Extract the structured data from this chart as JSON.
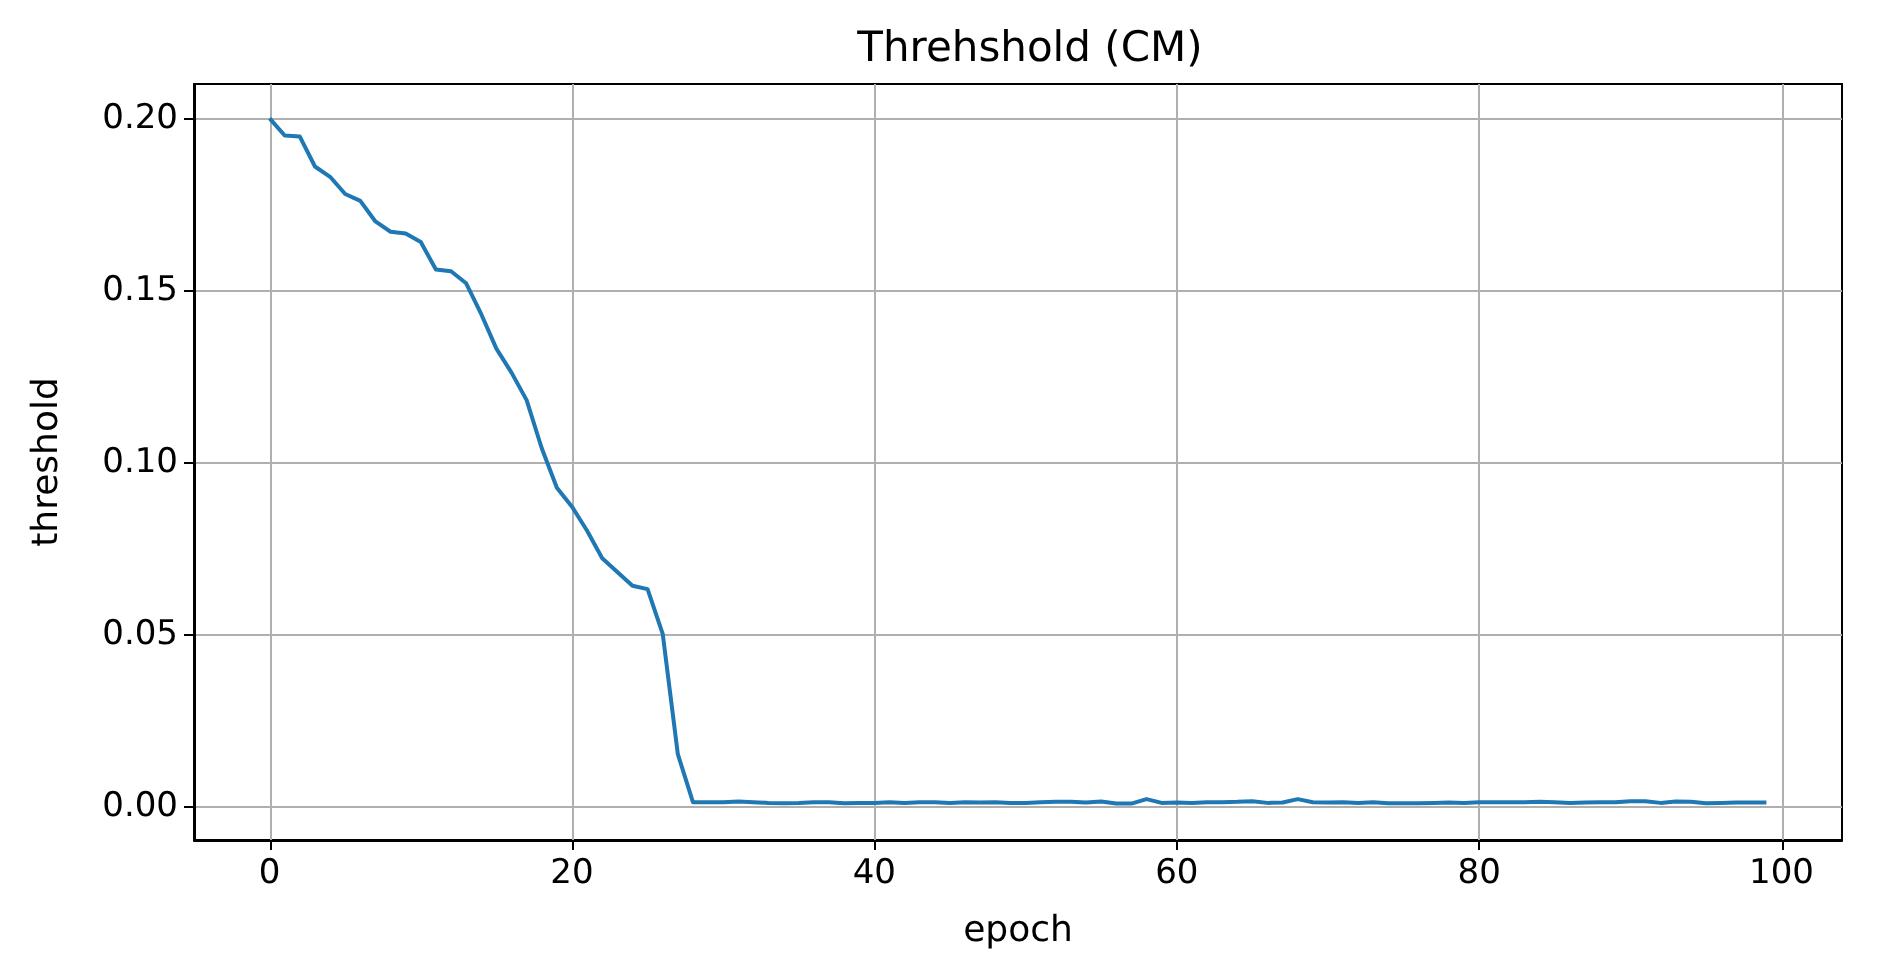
{
  "chart_data": {
    "type": "line",
    "title": "Threhshold (CM)",
    "xlabel": "epoch",
    "ylabel": "threshold",
    "x": [
      0,
      1,
      2,
      3,
      4,
      5,
      6,
      7,
      8,
      9,
      10,
      11,
      12,
      13,
      14,
      15,
      16,
      17,
      18,
      19,
      20,
      21,
      22,
      23,
      24,
      25,
      26,
      27,
      28,
      29,
      30,
      31,
      32,
      33,
      34,
      35,
      36,
      37,
      38,
      39,
      40,
      41,
      42,
      43,
      44,
      45,
      46,
      47,
      48,
      49,
      50,
      51,
      52,
      53,
      54,
      55,
      56,
      57,
      58,
      59,
      60,
      61,
      62,
      63,
      64,
      65,
      66,
      67,
      68,
      69,
      70,
      71,
      72,
      73,
      74,
      75,
      76,
      77,
      78,
      79,
      80,
      81,
      82,
      83,
      84,
      85,
      86,
      87,
      88,
      89,
      90,
      91,
      92,
      93,
      94,
      95,
      96,
      97,
      98,
      99
    ],
    "series": [
      {
        "color": "#1f77b4",
        "values": [
          0.2,
          0.195,
          0.1947,
          0.186,
          0.183,
          0.178,
          0.176,
          0.17,
          0.167,
          0.1665,
          0.164,
          0.156,
          0.1555,
          0.152,
          0.143,
          0.133,
          0.126,
          0.118,
          0.104,
          0.0925,
          0.087,
          0.08,
          0.072,
          0.068,
          0.064,
          0.063,
          0.05,
          0.015,
          0.001,
          0.001,
          0.001,
          0.0012,
          0.001,
          0.0008,
          0.0007,
          0.0008,
          0.001,
          0.001,
          0.0007,
          0.0008,
          0.0008,
          0.001,
          0.0008,
          0.001,
          0.001,
          0.0008,
          0.001,
          0.0009,
          0.001,
          0.0008,
          0.0008,
          0.001,
          0.0011,
          0.0011,
          0.0009,
          0.0012,
          0.0006,
          0.0006,
          0.0019,
          0.0008,
          0.0009,
          0.0008,
          0.001,
          0.001,
          0.0011,
          0.0013,
          0.0008,
          0.0009,
          0.0019,
          0.001,
          0.0009,
          0.001,
          0.0008,
          0.001,
          0.0007,
          0.0007,
          0.0007,
          0.0008,
          0.0009,
          0.0008,
          0.001,
          0.001,
          0.001,
          0.001,
          0.0011,
          0.001,
          0.0008,
          0.0009,
          0.001,
          0.001,
          0.0013,
          0.0013,
          0.0008,
          0.0012,
          0.0011,
          0.0007,
          0.0008,
          0.0009,
          0.0009,
          0.0009
        ]
      }
    ],
    "xlim": [
      -5,
      104
    ],
    "xticks": [
      0,
      20,
      40,
      60,
      80,
      100
    ],
    "ylim": [
      -0.01,
      0.21
    ],
    "yticks": [
      {
        "value": 0,
        "label": "0.00"
      },
      {
        "value": 0.05,
        "label": "0.05"
      },
      {
        "value": 0.1,
        "label": "0.10"
      },
      {
        "value": 0.15,
        "label": "0.15"
      },
      {
        "value": 0.2,
        "label": "0.20"
      }
    ],
    "grid": true,
    "marker": "none",
    "line_style": "solid"
  }
}
